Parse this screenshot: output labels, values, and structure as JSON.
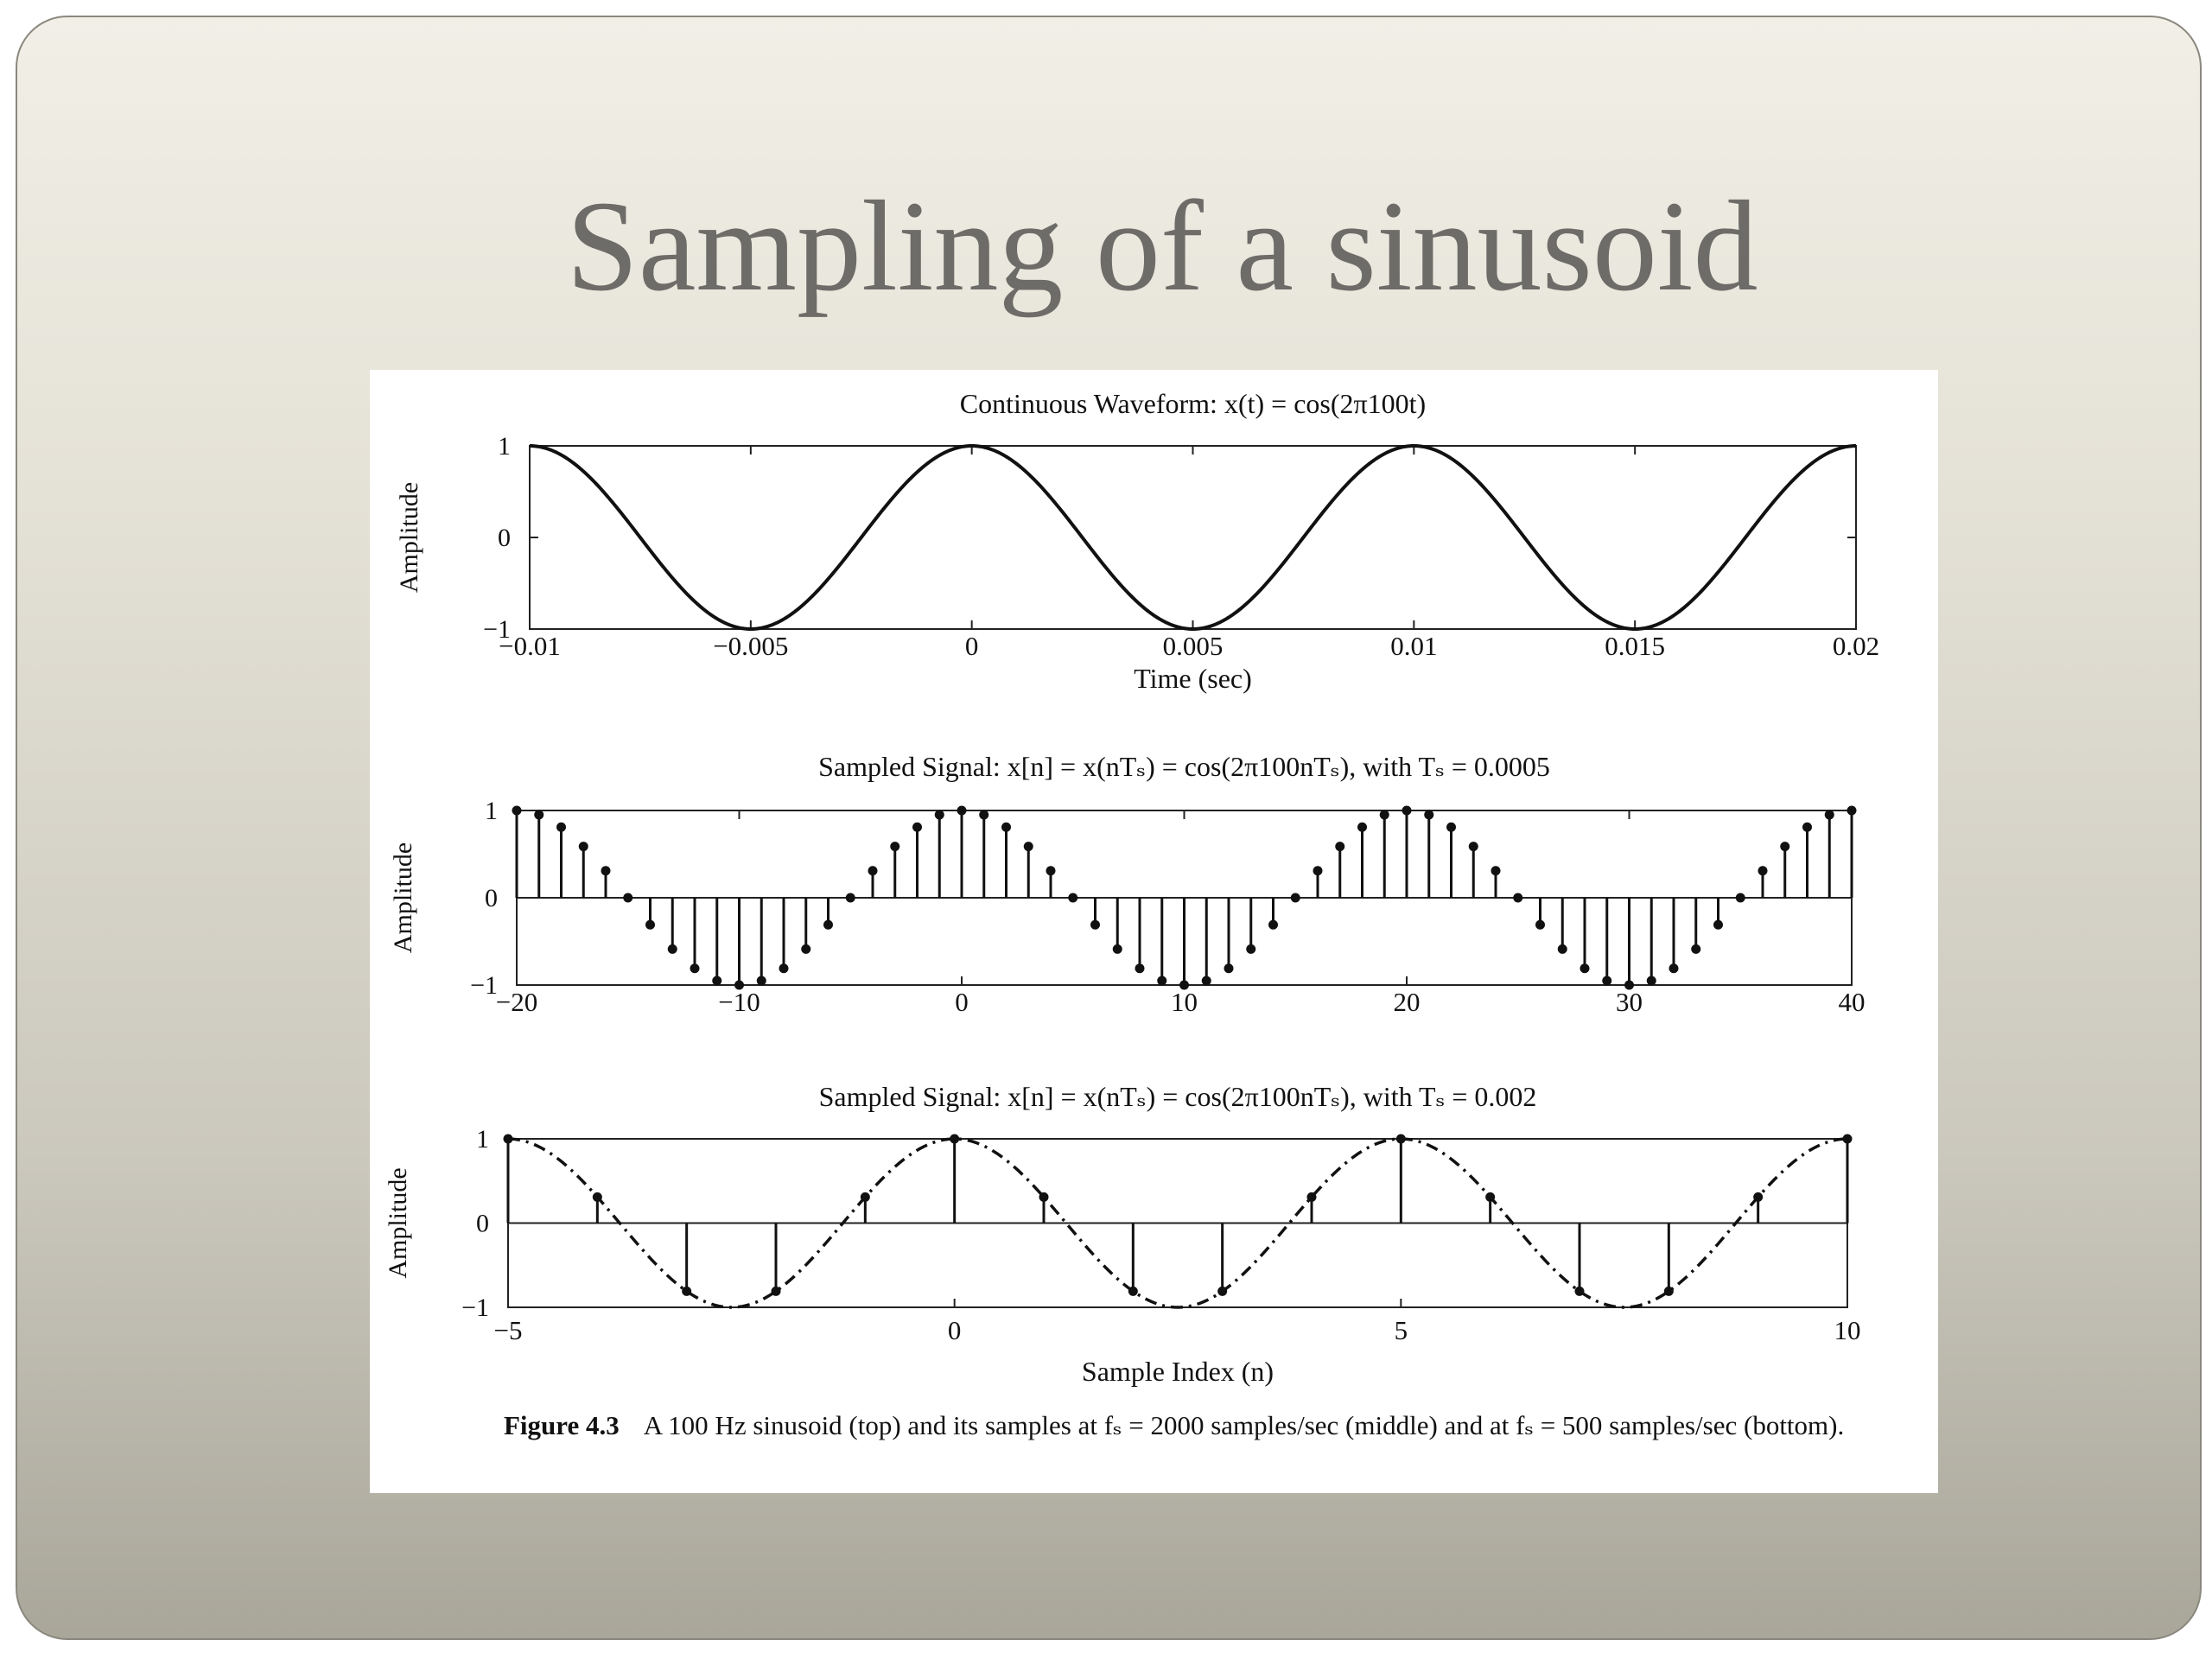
{
  "slide": {
    "title": "Sampling of a sinusoid"
  },
  "figure": {
    "caption_label": "Figure 4.3",
    "caption_text": "A 100 Hz sinusoid (top) and its samples at fₛ = 2000 samples/sec (middle) and at fₛ = 500 samples/sec (bottom)."
  },
  "chart_data": [
    {
      "type": "line",
      "title": "Continuous Waveform: x(t) = cos(2π100t)",
      "xlabel": "Time (sec)",
      "ylabel": "Amplitude",
      "function": "cos(2*pi*100*t)",
      "xlim": [
        -0.01,
        0.02
      ],
      "ylim": [
        -1,
        1
      ],
      "x_ticks": [
        -0.01,
        -0.005,
        0,
        0.005,
        0.01,
        0.015,
        0.02
      ],
      "x_tick_labels": [
        "−0.01",
        "−0.005",
        "0",
        "0.005",
        "0.01",
        "0.015",
        "0.02"
      ],
      "y_ticks": [
        -1,
        0,
        1
      ],
      "y_tick_labels": [
        "−1",
        "0",
        "1"
      ]
    },
    {
      "type": "stem",
      "title": "Sampled Signal: x[n] = x(nTₛ) = cos(2π100nTₛ), with Tₛ = 0.0005",
      "xlabel": "",
      "ylabel": "Amplitude",
      "Ts": 0.0005,
      "n_range": [
        -20,
        40
      ],
      "xlim": [
        -20,
        40
      ],
      "ylim": [
        -1,
        1
      ],
      "x_ticks": [
        -20,
        -10,
        0,
        10,
        20,
        30,
        40
      ],
      "x_tick_labels": [
        "−20",
        "−10",
        "0",
        "10",
        "20",
        "30",
        "40"
      ],
      "y_ticks": [
        -1,
        0,
        1
      ],
      "y_tick_labels": [
        "−1",
        "0",
        "1"
      ]
    },
    {
      "type": "stem",
      "title": "Sampled Signal: x[n] = x(nTₛ) = cos(2π100nTₛ), with Tₛ = 0.002",
      "xlabel": "Sample Index (n)",
      "ylabel": "Amplitude",
      "Ts": 0.002,
      "n_range": [
        -5,
        10
      ],
      "xlim": [
        -5,
        10
      ],
      "ylim": [
        -1,
        1
      ],
      "envelope": "dash-dot",
      "x_ticks": [
        -5,
        0,
        5,
        10
      ],
      "x_tick_labels": [
        "−5",
        "0",
        "5",
        "10"
      ],
      "y_ticks": [
        -1,
        0,
        1
      ],
      "y_tick_labels": [
        "−1",
        "0",
        "1"
      ]
    }
  ]
}
